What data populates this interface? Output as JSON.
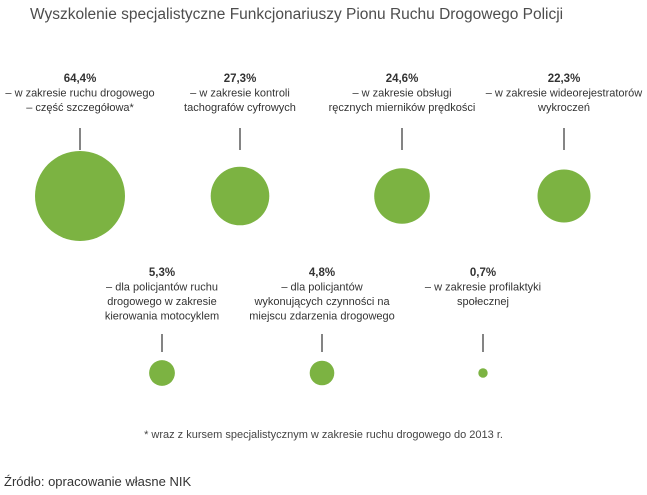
{
  "title": "Wyszkolenie specjalistyczne Funkcjonariuszy Pionu Ruchu Drogowego Policji",
  "chart_data": {
    "type": "bubble",
    "unit": "%",
    "color": "#7cb342",
    "items": [
      {
        "value": 64.4,
        "value_label": "64,4%",
        "label_lines": [
          "– w zakresie ruchu drogowego",
          "– część szczegółowa*"
        ]
      },
      {
        "value": 27.3,
        "value_label": "27,3%",
        "label_lines": [
          "– w zakresie kontroli",
          "tachografów cyfrowych"
        ]
      },
      {
        "value": 24.6,
        "value_label": "24,6%",
        "label_lines": [
          "– w zakresie obsługi",
          "ręcznych mierników prędkości"
        ]
      },
      {
        "value": 22.3,
        "value_label": "22,3%",
        "label_lines": [
          "– w zakresie wideorejestratorów",
          "wykroczeń"
        ]
      },
      {
        "value": 5.3,
        "value_label": "5,3%",
        "label_lines": [
          "– dla policjantów ruchu",
          "drogowego w zakresie",
          "kierowania motocyklem"
        ]
      },
      {
        "value": 4.8,
        "value_label": "4,8%",
        "label_lines": [
          "– dla policjantów",
          "wykonujących czynności na",
          "miejscu zdarzenia drogowego"
        ]
      },
      {
        "value": 0.7,
        "value_label": "0,7%",
        "label_lines": [
          "– w zakresie profilaktyki",
          "społecznej"
        ]
      }
    ]
  },
  "footnote": "* wraz z kursem specjalistycznym w zakresie ruchu drogowego  do 2013 r.",
  "source": "Źródło: opracowanie własne NIK"
}
